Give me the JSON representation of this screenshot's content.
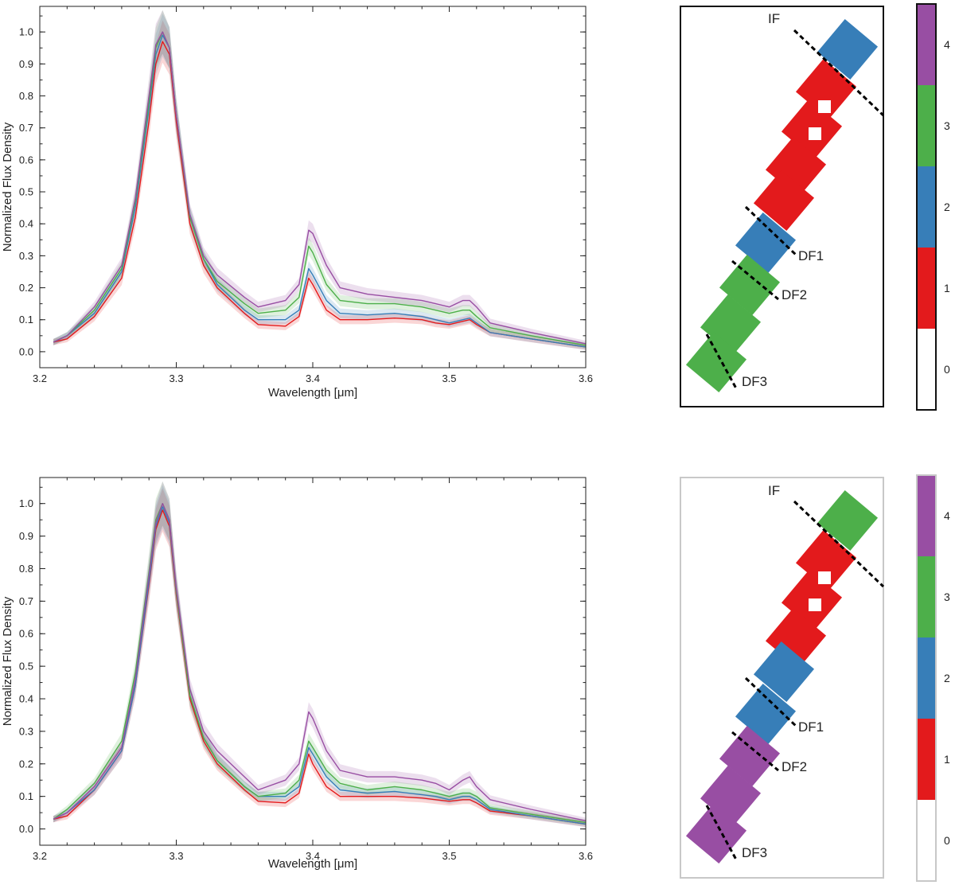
{
  "colors": {
    "1": "#e31a1c",
    "2": "#377eb8",
    "3": "#4daf4a",
    "4": "#984ea3",
    "axis": "#222222",
    "dash": "#000000"
  },
  "chart_data": [
    {
      "type": "line",
      "xlabel": "Wavelength [μm]",
      "ylabel": "Normalized Flux Density",
      "xlim": [
        3.2,
        3.6
      ],
      "ylim": [
        -0.05,
        1.08
      ],
      "xticks": [
        "3.2",
        "3.3",
        "3.4",
        "3.5",
        "3.6"
      ],
      "yticks": [
        "0.0",
        "0.1",
        "0.2",
        "0.3",
        "0.4",
        "0.5",
        "0.6",
        "0.7",
        "0.8",
        "0.9",
        "1.0"
      ],
      "x": [
        3.21,
        3.22,
        3.24,
        3.26,
        3.27,
        3.28,
        3.285,
        3.29,
        3.295,
        3.3,
        3.31,
        3.32,
        3.33,
        3.35,
        3.36,
        3.38,
        3.39,
        3.397,
        3.4,
        3.41,
        3.42,
        3.44,
        3.46,
        3.48,
        3.49,
        3.5,
        3.51,
        3.515,
        3.52,
        3.53,
        3.56,
        3.6
      ],
      "series": [
        {
          "color_key": "1",
          "values": [
            0.03,
            0.04,
            0.11,
            0.23,
            0.42,
            0.72,
            0.9,
            0.97,
            0.93,
            0.72,
            0.4,
            0.27,
            0.2,
            0.12,
            0.085,
            0.08,
            0.11,
            0.23,
            0.21,
            0.13,
            0.1,
            0.1,
            0.105,
            0.1,
            0.09,
            0.085,
            0.095,
            0.1,
            0.085,
            0.06,
            0.04,
            0.015
          ]
        },
        {
          "color_key": "2",
          "values": [
            0.03,
            0.05,
            0.12,
            0.25,
            0.45,
            0.76,
            0.93,
            0.99,
            0.95,
            0.74,
            0.42,
            0.29,
            0.21,
            0.13,
            0.1,
            0.1,
            0.13,
            0.26,
            0.24,
            0.16,
            0.12,
            0.115,
            0.12,
            0.11,
            0.1,
            0.09,
            0.1,
            0.105,
            0.09,
            0.06,
            0.04,
            0.015
          ]
        },
        {
          "color_key": "3",
          "values": [
            0.03,
            0.05,
            0.13,
            0.26,
            0.47,
            0.78,
            0.95,
            1.0,
            0.95,
            0.74,
            0.42,
            0.29,
            0.22,
            0.15,
            0.12,
            0.13,
            0.17,
            0.33,
            0.31,
            0.21,
            0.16,
            0.15,
            0.15,
            0.14,
            0.13,
            0.12,
            0.13,
            0.13,
            0.11,
            0.075,
            0.05,
            0.02
          ]
        },
        {
          "color_key": "4",
          "values": [
            0.03,
            0.05,
            0.14,
            0.27,
            0.48,
            0.8,
            0.96,
            1.0,
            0.95,
            0.74,
            0.43,
            0.3,
            0.24,
            0.17,
            0.14,
            0.16,
            0.21,
            0.38,
            0.37,
            0.27,
            0.2,
            0.18,
            0.17,
            0.16,
            0.15,
            0.14,
            0.16,
            0.16,
            0.14,
            0.09,
            0.06,
            0.025
          ]
        }
      ]
    },
    {
      "type": "line",
      "xlabel": "Wavelength [μm]",
      "ylabel": "Normalized Flux Density",
      "xlim": [
        3.2,
        3.6
      ],
      "ylim": [
        -0.05,
        1.08
      ],
      "xticks": [
        "3.2",
        "3.3",
        "3.4",
        "3.5",
        "3.6"
      ],
      "yticks": [
        "0.0",
        "0.1",
        "0.2",
        "0.3",
        "0.4",
        "0.5",
        "0.6",
        "0.7",
        "0.8",
        "0.9",
        "1.0"
      ],
      "x": [
        3.21,
        3.22,
        3.24,
        3.26,
        3.27,
        3.28,
        3.285,
        3.29,
        3.295,
        3.3,
        3.31,
        3.32,
        3.33,
        3.35,
        3.36,
        3.38,
        3.39,
        3.397,
        3.4,
        3.41,
        3.42,
        3.44,
        3.46,
        3.48,
        3.49,
        3.5,
        3.51,
        3.515,
        3.52,
        3.53,
        3.56,
        3.6
      ],
      "series": [
        {
          "color_key": "1",
          "values": [
            0.03,
            0.04,
            0.12,
            0.24,
            0.44,
            0.75,
            0.92,
            0.98,
            0.93,
            0.72,
            0.4,
            0.27,
            0.2,
            0.12,
            0.085,
            0.08,
            0.11,
            0.23,
            0.2,
            0.13,
            0.1,
            0.1,
            0.1,
            0.095,
            0.09,
            0.085,
            0.09,
            0.09,
            0.08,
            0.055,
            0.04,
            0.015
          ]
        },
        {
          "color_key": "2",
          "values": [
            0.03,
            0.05,
            0.12,
            0.24,
            0.44,
            0.76,
            0.93,
            0.99,
            0.94,
            0.73,
            0.41,
            0.28,
            0.21,
            0.13,
            0.1,
            0.1,
            0.13,
            0.25,
            0.23,
            0.16,
            0.12,
            0.11,
            0.115,
            0.105,
            0.1,
            0.09,
            0.1,
            0.1,
            0.09,
            0.06,
            0.04,
            0.015
          ]
        },
        {
          "color_key": "3",
          "values": [
            0.03,
            0.06,
            0.14,
            0.27,
            0.48,
            0.79,
            0.95,
            1.0,
            0.95,
            0.73,
            0.41,
            0.28,
            0.21,
            0.13,
            0.1,
            0.11,
            0.15,
            0.27,
            0.25,
            0.18,
            0.14,
            0.12,
            0.13,
            0.12,
            0.11,
            0.1,
            0.11,
            0.11,
            0.1,
            0.065,
            0.045,
            0.02
          ]
        },
        {
          "color_key": "4",
          "values": [
            0.03,
            0.05,
            0.13,
            0.25,
            0.46,
            0.78,
            0.94,
            1.0,
            0.95,
            0.74,
            0.43,
            0.3,
            0.24,
            0.16,
            0.12,
            0.15,
            0.2,
            0.36,
            0.34,
            0.24,
            0.18,
            0.16,
            0.16,
            0.15,
            0.14,
            0.12,
            0.15,
            0.16,
            0.13,
            0.09,
            0.06,
            0.025
          ]
        }
      ]
    }
  ],
  "maps": [
    {
      "frame": "dark",
      "labels": {
        "if": "IF",
        "df1": "DF1",
        "df2": "DF2",
        "df3": "DF3"
      },
      "colorbar": {
        "ticks": [
          "0",
          "1",
          "2",
          "3",
          "4"
        ]
      },
      "segment_keys": [
        "2",
        "1",
        "1",
        "1",
        "1",
        "2",
        "3",
        "3",
        "3"
      ]
    },
    {
      "frame": "light",
      "labels": {
        "if": "IF",
        "df1": "DF1",
        "df2": "DF2",
        "df3": "DF3"
      },
      "colorbar": {
        "ticks": [
          "0",
          "1",
          "2",
          "3",
          "4"
        ]
      },
      "segment_keys": [
        "3",
        "1",
        "1",
        "1",
        "2",
        "2",
        "4",
        "4",
        "4"
      ]
    }
  ]
}
